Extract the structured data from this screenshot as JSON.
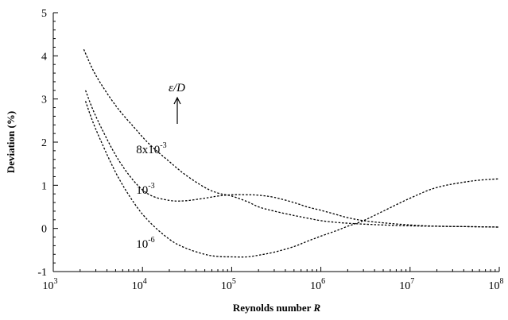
{
  "chart_data": {
    "type": "line",
    "xscale": "log",
    "xlim": [
      1000,
      100000000
    ],
    "ylim": [
      -1,
      5
    ],
    "xlabel": "Reynolds number",
    "xlabel_var": "R",
    "ylabel": "Deviation (%)",
    "grid": false,
    "xticks": [
      {
        "value": 1000,
        "base": "10",
        "exp": "3"
      },
      {
        "value": 10000,
        "base": "10",
        "exp": "4"
      },
      {
        "value": 100000,
        "base": "10",
        "exp": "5"
      },
      {
        "value": 1000000,
        "base": "10",
        "exp": "6"
      },
      {
        "value": 10000000,
        "base": "10",
        "exp": "7"
      },
      {
        "value": 100000000,
        "base": "10",
        "exp": "8"
      }
    ],
    "yticks": [
      -1,
      0,
      1,
      2,
      3,
      4,
      5
    ],
    "series": [
      {
        "label_base": "8x10",
        "label_exp": "-3",
        "x": [
          2200,
          3000,
          5000,
          8000,
          12000,
          20000,
          30000,
          50000,
          70000,
          100000,
          150000,
          200000,
          300000,
          500000,
          700000,
          1000000,
          1500000,
          2000000,
          3000000,
          5000000,
          10000000,
          20000000,
          50000000,
          100000000
        ],
        "y": [
          4.15,
          3.55,
          2.85,
          2.35,
          1.95,
          1.55,
          1.25,
          0.95,
          0.82,
          0.75,
          0.62,
          0.5,
          0.4,
          0.3,
          0.24,
          0.18,
          0.14,
          0.12,
          0.1,
          0.08,
          0.06,
          0.05,
          0.04,
          0.03
        ]
      },
      {
        "label_base": "10",
        "label_exp": "-3",
        "x": [
          2300,
          3000,
          5000,
          8000,
          12000,
          20000,
          30000,
          50000,
          70000,
          100000,
          150000,
          200000,
          300000,
          500000,
          700000,
          1000000,
          1500000,
          2000000,
          3000000,
          5000000,
          10000000,
          20000000,
          50000000,
          100000000
        ],
        "y": [
          3.2,
          2.6,
          1.7,
          1.1,
          0.78,
          0.65,
          0.64,
          0.7,
          0.75,
          0.78,
          0.78,
          0.77,
          0.72,
          0.6,
          0.5,
          0.42,
          0.32,
          0.25,
          0.18,
          0.13,
          0.08,
          0.05,
          0.04,
          0.03
        ]
      },
      {
        "label_base": "10",
        "label_exp": "-6",
        "x": [
          2300,
          3000,
          5000,
          8000,
          12000,
          20000,
          30000,
          50000,
          70000,
          100000,
          150000,
          200000,
          300000,
          500000,
          700000,
          1000000,
          1500000,
          2000000,
          3000000,
          5000000,
          10000000,
          20000000,
          50000000,
          100000000
        ],
        "y": [
          2.95,
          2.3,
          1.3,
          0.6,
          0.15,
          -0.25,
          -0.45,
          -0.6,
          -0.65,
          -0.66,
          -0.66,
          -0.62,
          -0.55,
          -0.42,
          -0.3,
          -0.18,
          -0.05,
          0.05,
          0.18,
          0.4,
          0.7,
          0.95,
          1.1,
          1.15
        ]
      }
    ],
    "annotation": {
      "symbol": "ε/D"
    }
  }
}
